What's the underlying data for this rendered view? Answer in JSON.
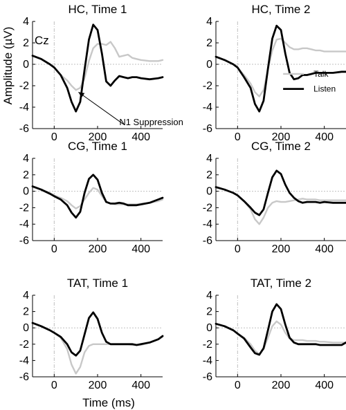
{
  "figure": {
    "ylabel": "Amplitude (µV)",
    "xlabel": "Time (ms)",
    "legend": {
      "talk": "Talk",
      "listen": "Listen"
    },
    "annotation": "N1 Suppression",
    "electrode": "Cz"
  },
  "colors": {
    "talk": "#c8c8c8",
    "listen": "#000000",
    "axis": "#000000",
    "guide": "#bfbfbf"
  },
  "chart_data": [
    {
      "type": "line",
      "title": "HC, Time 1",
      "xlim": [
        -100,
        500
      ],
      "ylim": [
        -6,
        4
      ],
      "xticks": [
        0,
        200,
        400
      ],
      "yticks": [
        -6,
        -4,
        -2,
        0,
        2,
        4
      ],
      "series": [
        {
          "name": "Talk",
          "x": [
            -100,
            -60,
            -20,
            0,
            30,
            60,
            80,
            100,
            120,
            140,
            160,
            180,
            200,
            220,
            240,
            260,
            280,
            300,
            320,
            340,
            360,
            380,
            400,
            440,
            480,
            500
          ],
          "y": [
            0.8,
            0.5,
            0,
            -0.3,
            -1,
            -1.5,
            -2,
            -2.4,
            -2.2,
            -1.3,
            0.3,
            1.5,
            1.9,
            1.9,
            1.8,
            2.1,
            1.5,
            0.7,
            0.8,
            0.9,
            0.6,
            0.5,
            0.4,
            0.3,
            0.3,
            0.4
          ]
        },
        {
          "name": "Listen",
          "x": [
            -100,
            -60,
            -20,
            0,
            30,
            60,
            80,
            100,
            120,
            140,
            160,
            180,
            200,
            220,
            240,
            260,
            280,
            300,
            320,
            340,
            360,
            380,
            400,
            440,
            480,
            500
          ],
          "y": [
            0.8,
            0.5,
            0,
            -0.3,
            -1,
            -2.2,
            -3.5,
            -4.4,
            -3.5,
            -0.5,
            2.3,
            3.7,
            3.2,
            1,
            -1.6,
            -2,
            -1.5,
            -1.1,
            -1.2,
            -1.3,
            -1.2,
            -1.2,
            -1.3,
            -1.4,
            -1.3,
            -1.2
          ]
        }
      ]
    },
    {
      "type": "line",
      "title": "HC, Time 2",
      "xlim": [
        -100,
        500
      ],
      "ylim": [
        -6,
        4
      ],
      "xticks": [
        0,
        200,
        400
      ],
      "yticks": [
        -6,
        -4,
        -2,
        0,
        2,
        4
      ],
      "series": [
        {
          "name": "Talk",
          "x": [
            -100,
            -60,
            -20,
            0,
            30,
            60,
            80,
            100,
            120,
            140,
            160,
            180,
            200,
            220,
            240,
            260,
            280,
            300,
            320,
            340,
            360,
            380,
            400,
            440,
            480,
            500
          ],
          "y": [
            0.7,
            0.4,
            0,
            -0.3,
            -1,
            -1.8,
            -2.6,
            -3,
            -2.4,
            -0.5,
            1.3,
            2.3,
            2.4,
            2,
            1.6,
            1.4,
            1.4,
            1.5,
            1.5,
            1.4,
            1.3,
            1.3,
            1.2,
            1.2,
            1.2,
            1.2
          ]
        },
        {
          "name": "Listen",
          "x": [
            -100,
            -60,
            -20,
            0,
            30,
            60,
            80,
            100,
            120,
            140,
            160,
            180,
            200,
            220,
            240,
            260,
            280,
            300,
            320,
            340,
            360,
            380,
            400,
            440,
            480,
            500
          ],
          "y": [
            0.7,
            0.4,
            0,
            -0.3,
            -1.2,
            -2.2,
            -3.7,
            -4.4,
            -3.4,
            -0.4,
            2.4,
            3.6,
            3.2,
            1,
            -0.8,
            -1.4,
            -1.3,
            -1,
            -1,
            -0.9,
            -0.8,
            -0.8,
            -0.8,
            -0.8,
            -0.7,
            -0.7
          ]
        }
      ]
    },
    {
      "type": "line",
      "title": "CG, Time 1",
      "xlim": [
        -100,
        500
      ],
      "ylim": [
        -6,
        4
      ],
      "xticks": [
        0,
        200,
        400
      ],
      "yticks": [
        -6,
        -4,
        -2,
        0,
        2,
        4
      ],
      "series": [
        {
          "name": "Talk",
          "x": [
            -100,
            -60,
            -20,
            0,
            30,
            60,
            80,
            100,
            120,
            140,
            160,
            180,
            200,
            220,
            240,
            260,
            280,
            300,
            320,
            340,
            360,
            380,
            400,
            440,
            480,
            500
          ],
          "y": [
            0.5,
            0.2,
            -0.2,
            -0.5,
            -0.8,
            -1.2,
            -1.7,
            -2.1,
            -1.8,
            -1,
            -0.2,
            0.4,
            0.2,
            -0.6,
            -1.3,
            -1.5,
            -1.6,
            -1.6,
            -1.6,
            -1.6,
            -1.6,
            -1.6,
            -1.5,
            -1.4,
            -1.2,
            -1
          ]
        },
        {
          "name": "Listen",
          "x": [
            -100,
            -60,
            -20,
            0,
            30,
            60,
            80,
            100,
            120,
            140,
            160,
            180,
            200,
            220,
            240,
            260,
            280,
            300,
            320,
            340,
            360,
            380,
            400,
            440,
            480,
            500
          ],
          "y": [
            0.6,
            0.2,
            -0.3,
            -0.6,
            -1,
            -1.7,
            -2.6,
            -3.2,
            -2.5,
            -0.2,
            1.5,
            2,
            1.4,
            -0.2,
            -1.3,
            -1.5,
            -1.5,
            -1.4,
            -1.5,
            -1.7,
            -1.7,
            -1.7,
            -1.6,
            -1.4,
            -1,
            -0.8
          ]
        }
      ]
    },
    {
      "type": "line",
      "title": "CG, Time 2",
      "xlim": [
        -100,
        500
      ],
      "ylim": [
        -6,
        4
      ],
      "xticks": [
        0,
        200,
        400
      ],
      "yticks": [
        -6,
        -4,
        -2,
        0,
        2,
        4
      ],
      "series": [
        {
          "name": "Talk",
          "x": [
            -100,
            -60,
            -20,
            0,
            30,
            60,
            80,
            100,
            120,
            140,
            160,
            180,
            200,
            220,
            240,
            260,
            280,
            300,
            320,
            340,
            360,
            380,
            400,
            440,
            480,
            500
          ],
          "y": [
            0.5,
            0.2,
            -0.2,
            -0.5,
            -1.2,
            -2.2,
            -3.4,
            -4,
            -3.2,
            -2,
            -1.4,
            -1.2,
            -1.3,
            -1.3,
            -1.2,
            -1.1,
            -1,
            -0.9,
            -1,
            -1,
            -1,
            -1.1,
            -1.1,
            -1.1,
            -1.1,
            -1.1
          ]
        },
        {
          "name": "Listen",
          "x": [
            -100,
            -60,
            -20,
            0,
            30,
            60,
            80,
            100,
            120,
            140,
            160,
            180,
            200,
            220,
            240,
            260,
            280,
            300,
            320,
            340,
            360,
            380,
            400,
            440,
            480,
            500
          ],
          "y": [
            0.5,
            0.2,
            -0.2,
            -0.5,
            -1.2,
            -2,
            -2.6,
            -2.9,
            -2.2,
            -0.2,
            1.7,
            2.5,
            2.1,
            0.8,
            -0.2,
            -0.8,
            -1.2,
            -1.4,
            -1.3,
            -1.3,
            -1.3,
            -1.4,
            -1.3,
            -1.4,
            -1.4,
            -1.4
          ]
        }
      ]
    },
    {
      "type": "line",
      "title": "TAT, Time 1",
      "xlim": [
        -100,
        500
      ],
      "ylim": [
        -6,
        4
      ],
      "xticks": [
        0,
        200,
        400
      ],
      "yticks": [
        -6,
        -4,
        -2,
        0,
        2,
        4
      ],
      "series": [
        {
          "name": "Talk",
          "x": [
            -100,
            -60,
            -20,
            0,
            30,
            60,
            80,
            100,
            120,
            140,
            160,
            180,
            200,
            220,
            240,
            260,
            280,
            300,
            320,
            340,
            360,
            380,
            400,
            440,
            480,
            500
          ],
          "y": [
            0.6,
            0.2,
            -0.3,
            -0.6,
            -1.2,
            -2.6,
            -4.5,
            -5.6,
            -4.8,
            -3,
            -2.2,
            -2,
            -2,
            -2,
            -2,
            -2,
            -2,
            -2,
            -2,
            -2,
            -2.1,
            -2.1,
            -2.1,
            -1.8,
            -1.4,
            -1.1
          ]
        },
        {
          "name": "Listen",
          "x": [
            -100,
            -60,
            -20,
            0,
            30,
            60,
            80,
            100,
            120,
            140,
            160,
            180,
            200,
            220,
            240,
            260,
            280,
            300,
            320,
            340,
            360,
            380,
            400,
            440,
            480,
            500
          ],
          "y": [
            0.6,
            0.2,
            -0.3,
            -0.6,
            -1.1,
            -2,
            -3,
            -3.4,
            -2.8,
            -0.8,
            1.2,
            1.9,
            1.1,
            -0.6,
            -1.7,
            -2,
            -2,
            -2,
            -2,
            -2,
            -2,
            -2.1,
            -2,
            -1.8,
            -1.4,
            -1
          ]
        }
      ]
    },
    {
      "type": "line",
      "title": "TAT, Time 2",
      "xlim": [
        -100,
        500
      ],
      "ylim": [
        -6,
        4
      ],
      "xticks": [
        0,
        200,
        400
      ],
      "yticks": [
        -6,
        -4,
        -2,
        0,
        2,
        4
      ],
      "series": [
        {
          "name": "Talk",
          "x": [
            -100,
            -60,
            -20,
            0,
            30,
            60,
            80,
            100,
            120,
            140,
            160,
            180,
            200,
            220,
            240,
            260,
            280,
            300,
            320,
            340,
            360,
            380,
            400,
            440,
            480,
            500
          ],
          "y": [
            0.5,
            0.2,
            -0.3,
            -0.7,
            -1.2,
            -2,
            -2.8,
            -3.2,
            -2.6,
            -1.2,
            0.2,
            0.8,
            0.4,
            -0.6,
            -1.3,
            -1.5,
            -1.5,
            -1.5,
            -1.6,
            -1.6,
            -1.6,
            -1.7,
            -1.7,
            -1.8,
            -1.8,
            -1.8
          ]
        },
        {
          "name": "Listen",
          "x": [
            -100,
            -60,
            -20,
            0,
            30,
            60,
            80,
            100,
            120,
            140,
            160,
            180,
            200,
            220,
            240,
            260,
            280,
            300,
            320,
            340,
            360,
            380,
            400,
            440,
            480,
            500
          ],
          "y": [
            0.5,
            0.2,
            -0.3,
            -0.7,
            -1.3,
            -2.4,
            -3.1,
            -3.3,
            -2.5,
            -0.3,
            2,
            2.9,
            2.3,
            0.4,
            -1.2,
            -1.8,
            -2,
            -2,
            -2,
            -2,
            -2,
            -2.1,
            -2.1,
            -2.1,
            -2.1,
            -1.8
          ]
        }
      ]
    }
  ]
}
